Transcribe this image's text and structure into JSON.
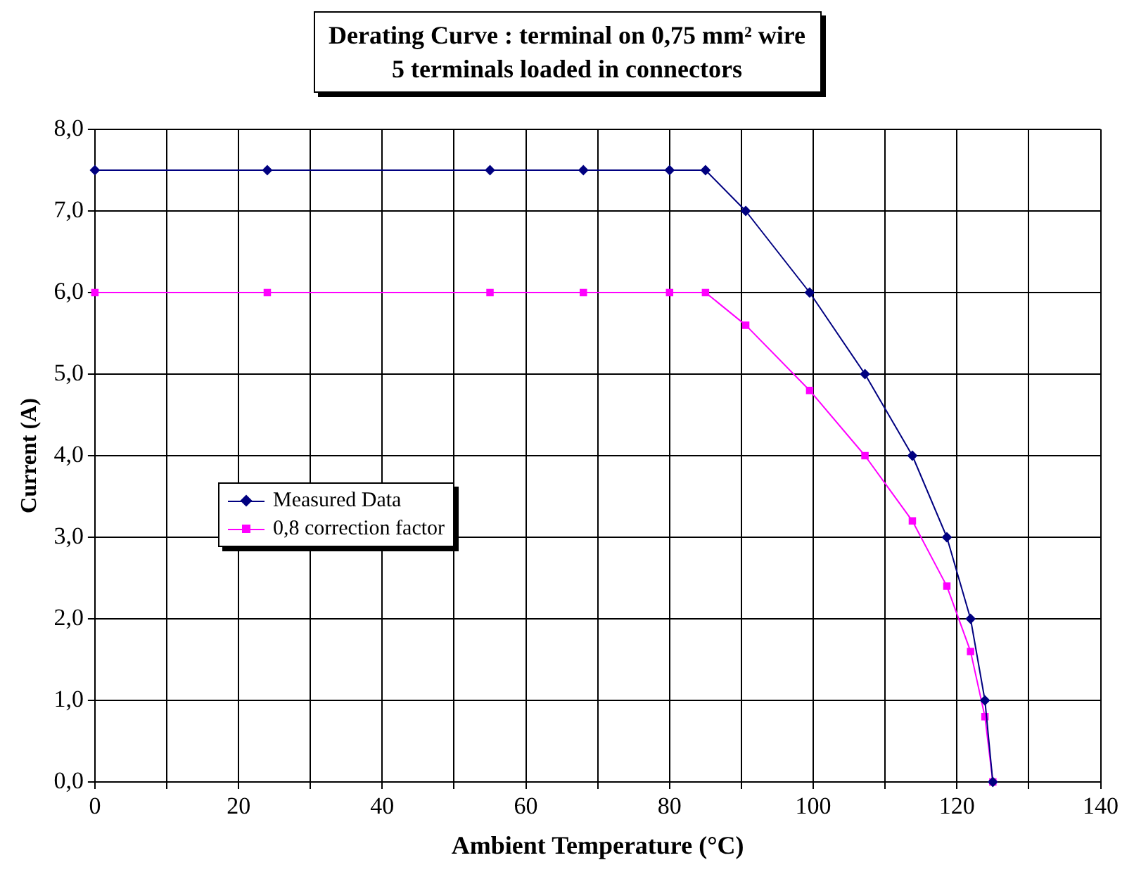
{
  "chart_data": {
    "type": "line",
    "title": "Derating Curve : terminal on 0,75 mm² wire",
    "subtitle": "5 terminals loaded in connectors",
    "xlabel": "Ambient Temperature (°C)",
    "ylabel": "Current (A)",
    "xlim": [
      0,
      140
    ],
    "xticks": [
      0,
      {
        "value": 10,
        "label": null
      },
      20,
      {
        "value": 30,
        "label": null
      },
      40,
      {
        "value": 50,
        "label": null
      },
      60,
      {
        "value": 70,
        "label": null
      },
      80,
      {
        "value": 90,
        "label": null
      },
      100,
      {
        "value": 110,
        "label": null
      },
      120,
      {
        "value": 130,
        "label": null
      },
      140
    ],
    "ylim": [
      0,
      8
    ],
    "yticks": [
      {
        "value": 0,
        "label": "0,0"
      },
      {
        "value": 1,
        "label": "1,0"
      },
      {
        "value": 2,
        "label": "2,0"
      },
      {
        "value": 3,
        "label": "3,0"
      },
      {
        "value": 4,
        "label": "4,0"
      },
      {
        "value": 5,
        "label": "5,0"
      },
      {
        "value": 6,
        "label": "6,0"
      },
      {
        "value": 7,
        "label": "7,0"
      },
      {
        "value": 8,
        "label": "8,0"
      }
    ],
    "grid": true,
    "legend": "left",
    "line_style": "solid",
    "series": [
      {
        "name": "Measured Data",
        "color": "#000080",
        "marker": "diamond",
        "x": [
          0,
          24,
          55,
          68,
          80,
          85,
          90.6,
          99.5,
          107.2,
          113.8,
          118.6,
          121.9,
          123.9,
          125
        ],
        "values": [
          7.5,
          7.5,
          7.5,
          7.5,
          7.5,
          7.5,
          7,
          6,
          5,
          4,
          3,
          2,
          1,
          0
        ]
      },
      {
        "name": "0,8 correction factor",
        "color": "#ff00ff",
        "marker": "square",
        "x": [
          0,
          24,
          55,
          68,
          80,
          85,
          90.6,
          99.5,
          107.2,
          113.8,
          118.6,
          121.9,
          123.9,
          125
        ],
        "values": [
          6,
          6,
          6,
          6,
          6,
          6,
          5.6,
          4.8,
          4,
          3.2,
          2.4,
          1.6,
          0.8,
          0
        ]
      }
    ]
  }
}
